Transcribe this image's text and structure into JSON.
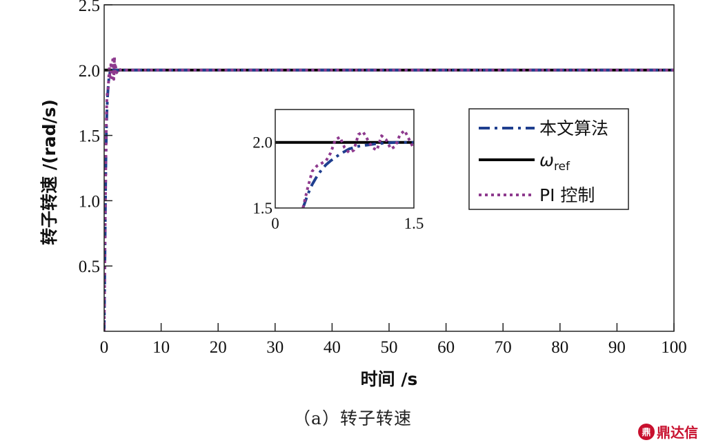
{
  "chart_data": [
    {
      "type": "line",
      "xlabel": "时间 /s",
      "ylabel": "转子转速 /(rad/s)",
      "xlim": [
        0,
        100
      ],
      "ylim": [
        0,
        2.5
      ],
      "xticks": [
        "0",
        "10",
        "20",
        "30",
        "40",
        "50",
        "60",
        "70",
        "80",
        "90",
        "100"
      ],
      "yticks": [
        "0.5",
        "1.0",
        "1.5",
        "2.0",
        "2.5"
      ],
      "grid": false,
      "legend_position": "inside-right",
      "series": [
        {
          "name": "本文算法",
          "color": "#1f3f8f",
          "style": "dash-dot",
          "x": [
            0,
            0.1,
            0.2,
            0.3,
            0.4,
            0.5,
            0.6,
            0.7,
            0.8,
            0.9,
            1.0,
            1.2,
            1.5,
            2.0,
            5,
            20,
            50,
            100
          ],
          "y": [
            0,
            0.4,
            0.9,
            1.3,
            1.55,
            1.7,
            1.8,
            1.87,
            1.92,
            1.96,
            1.98,
            1.99,
            2.0,
            2.0,
            2.0,
            2.0,
            2.0,
            2.0
          ]
        },
        {
          "name": "ω_ref",
          "color": "#000000",
          "style": "solid",
          "x": [
            0,
            100
          ],
          "y": [
            2.0,
            2.0
          ]
        },
        {
          "name": "PI 控制",
          "color": "#8e3a8e",
          "style": "dotted",
          "x": [
            0,
            0.1,
            0.2,
            0.3,
            0.4,
            0.5,
            0.6,
            0.7,
            0.8,
            0.9,
            1.0,
            1.1,
            1.2,
            1.3,
            1.4,
            1.5,
            1.6,
            1.7,
            1.8,
            1.9,
            2.0,
            2.2,
            2.5,
            3,
            5,
            20,
            50,
            100
          ],
          "y": [
            0,
            0.45,
            0.95,
            1.35,
            1.65,
            1.8,
            1.84,
            1.86,
            1.93,
            2.03,
            1.95,
            1.93,
            2.06,
            1.98,
            1.94,
            2.08,
            1.97,
            1.93,
            2.1,
            1.99,
            2.03,
            1.98,
            2.01,
            2.0,
            2.0,
            2.0,
            2.0,
            2.0
          ]
        }
      ]
    },
    {
      "type": "line",
      "inset": true,
      "xlim": [
        0,
        1.5
      ],
      "ylim": [
        1.5,
        2.25
      ],
      "xticks": [
        "0",
        "1.5"
      ],
      "yticks": [
        "1.5",
        "2.0"
      ],
      "series": [
        {
          "name": "本文算法",
          "color": "#1f3f8f",
          "style": "dash-dot",
          "x": [
            0.3,
            0.35,
            0.4,
            0.45,
            0.5,
            0.55,
            0.6,
            0.7,
            0.8,
            0.9,
            1.0,
            1.1,
            1.2,
            1.3,
            1.4,
            1.5
          ],
          "y": [
            1.5,
            1.6,
            1.68,
            1.74,
            1.79,
            1.83,
            1.86,
            1.91,
            1.95,
            1.97,
            1.98,
            1.99,
            1.995,
            2.0,
            2.0,
            2.0
          ]
        },
        {
          "name": "ω_ref",
          "color": "#000000",
          "style": "solid",
          "x": [
            0,
            1.5
          ],
          "y": [
            2.0,
            2.0
          ]
        },
        {
          "name": "PI 控制",
          "color": "#8e3a8e",
          "style": "dotted",
          "x": [
            0.3,
            0.35,
            0.4,
            0.45,
            0.5,
            0.55,
            0.6,
            0.65,
            0.7,
            0.75,
            0.8,
            0.85,
            0.9,
            0.95,
            1.0,
            1.05,
            1.1,
            1.15,
            1.2,
            1.25,
            1.3,
            1.35,
            1.4,
            1.45,
            1.5
          ],
          "y": [
            1.5,
            1.65,
            1.78,
            1.82,
            1.84,
            1.86,
            1.92,
            2.02,
            2.04,
            1.96,
            1.92,
            1.94,
            2.06,
            2.08,
            2.02,
            1.96,
            1.94,
            2.05,
            2.02,
            1.95,
            1.97,
            2.06,
            2.09,
            2.02,
            1.95
          ]
        }
      ]
    }
  ],
  "legend": {
    "items": [
      {
        "label": "本文算法",
        "kind": "text"
      },
      {
        "label": "ω",
        "sub": "ref",
        "kind": "omega"
      },
      {
        "label": "PI 控制",
        "kind": "text"
      }
    ]
  },
  "caption": "（a）转子转速",
  "watermark": {
    "logo_glyph": "鼎",
    "text": "鼎达信"
  }
}
